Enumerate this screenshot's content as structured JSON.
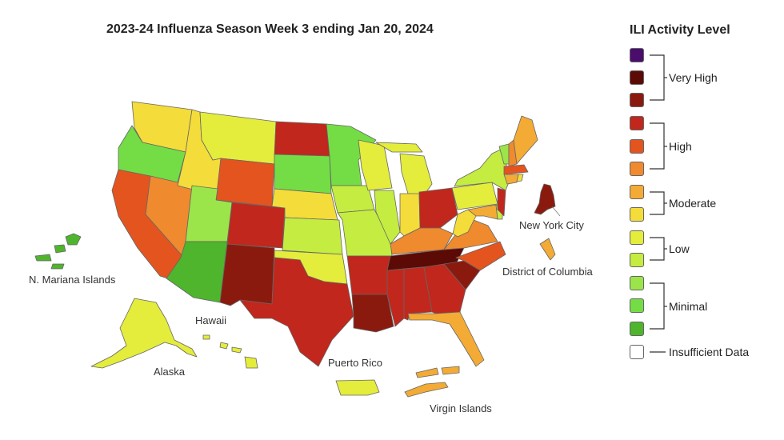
{
  "title": "2023-24 Influenza Season Week 3 ending Jan 20, 2024",
  "legend": {
    "title": "ILI Activity Level",
    "swatches": [
      "#4a0d6e",
      "#5c0a05",
      "#8b1a0e",
      "#c1271c",
      "#e4541f",
      "#ef8a2e",
      "#f3ab35",
      "#f4dc3a",
      "#e4ec3c",
      "#c4ec41",
      "#9be54a",
      "#74dd45",
      "#4eb52d",
      "#ffffff"
    ],
    "groups": [
      "Very High",
      "High",
      "Moderate",
      "Low",
      "Minimal",
      "Insufficient Data"
    ]
  },
  "labels": {
    "mariana": "N. Mariana Islands",
    "hawaii": "Hawaii",
    "alaska": "Alaska",
    "puerto_rico": "Puerto Rico",
    "virgin_islands": "Virgin Islands",
    "dc": "District of Columbia",
    "nyc": "New York City"
  },
  "colors": {
    "very_high_dark": "#5c0a05",
    "very_high": "#8b1a0e",
    "high": "#c1271c",
    "high_orange": "#e4541f",
    "high_light": "#ef8a2e",
    "moderate": "#f3ab35",
    "moderate_yellow": "#f4dc3a",
    "low": "#e4ec3c",
    "low_green": "#c4ec41",
    "minimal": "#9be54a",
    "minimal_mid": "#74dd45",
    "minimal_dark": "#4eb52d"
  }
}
